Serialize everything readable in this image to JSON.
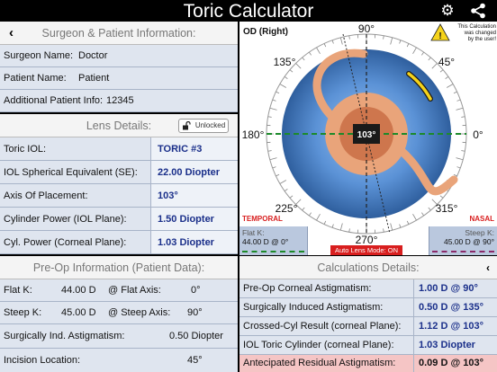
{
  "app": {
    "title": "Toric Calculator"
  },
  "surgeon": {
    "header": "Surgeon & Patient Information:",
    "rows": [
      {
        "label": "Surgeon Name:",
        "value": "Doctor"
      },
      {
        "label": "Patient Name:",
        "value": "Patient"
      },
      {
        "label": "Additional Patient Info:",
        "value": "12345"
      }
    ]
  },
  "lens": {
    "header": "Lens Details:",
    "lock_label": "Unlocked",
    "rows": [
      {
        "label": "Toric IOL:",
        "value": "TORIC #3"
      },
      {
        "label": "IOL Spherical Equivalent (SE):",
        "value": "22.00 Diopter"
      },
      {
        "label": "Axis Of Placement:",
        "value": "103°"
      },
      {
        "label": "Cylinder Power (IOL Plane):",
        "value": "1.50 Diopter"
      },
      {
        "label": "Cyl. Power (Corneal Plane):",
        "value": "1.03 Diopter"
      }
    ]
  },
  "preop": {
    "header": "Pre-Op Information (Patient Data):",
    "flat_k_label": "Flat K:",
    "flat_k_value": "44.00 D",
    "flat_axis_label": "@ Flat Axis:",
    "flat_axis_value": "0°",
    "steep_k_label": "Steep K:",
    "steep_k_value": "45.00 D",
    "steep_axis_label": "@ Steep Axis:",
    "steep_axis_value": "90°",
    "sia_label": "Surgically Ind. Astigmatism:",
    "sia_value": "0.50 Diopter",
    "incision_label": "Incision Location:",
    "incision_value": "45°"
  },
  "calc": {
    "header": "Calculations Details:",
    "rows": [
      {
        "label": "Pre-Op Corneal Astigmatism:",
        "value": "1.00 D @ 90°"
      },
      {
        "label": "Surgically Induced Astigmatism:",
        "value": "0.50 D @ 135°"
      },
      {
        "label": "Crossed-Cyl Result (corneal Plane):",
        "value": "1.12 D @ 103°"
      },
      {
        "label": "IOL Toric Cylinder (corneal Plane):",
        "value": "1.03 Diopter"
      },
      {
        "label": "Antecipated Residual Astigmatism:",
        "value": "0.09 D @ 103°"
      }
    ]
  },
  "diagram": {
    "eye_label": "OD (Right)",
    "warning_text": [
      "This Calculation",
      "was changed",
      "by the user!"
    ],
    "angles": {
      "a90": "90°",
      "a45": "45°",
      "a135": "135°",
      "a180": "180°",
      "a0": "0°",
      "a225": "225°",
      "a315": "315°",
      "a270": "270°"
    },
    "center_value": "103°",
    "temporal": "TEMPORAL",
    "nasal": "NASAL",
    "flat_k_label": "Flat K:",
    "flat_k_value": "44.00 D @ 0°",
    "steep_k_label": "Steep K:",
    "steep_k_value": "45.00 D @ 90°",
    "auto_mode": "Auto Lens Mode: ON",
    "colors": {
      "iris": "#5b92d6",
      "lens": "#e9a47a",
      "warning": "#f5d31a",
      "red": "#d81e1e"
    }
  }
}
